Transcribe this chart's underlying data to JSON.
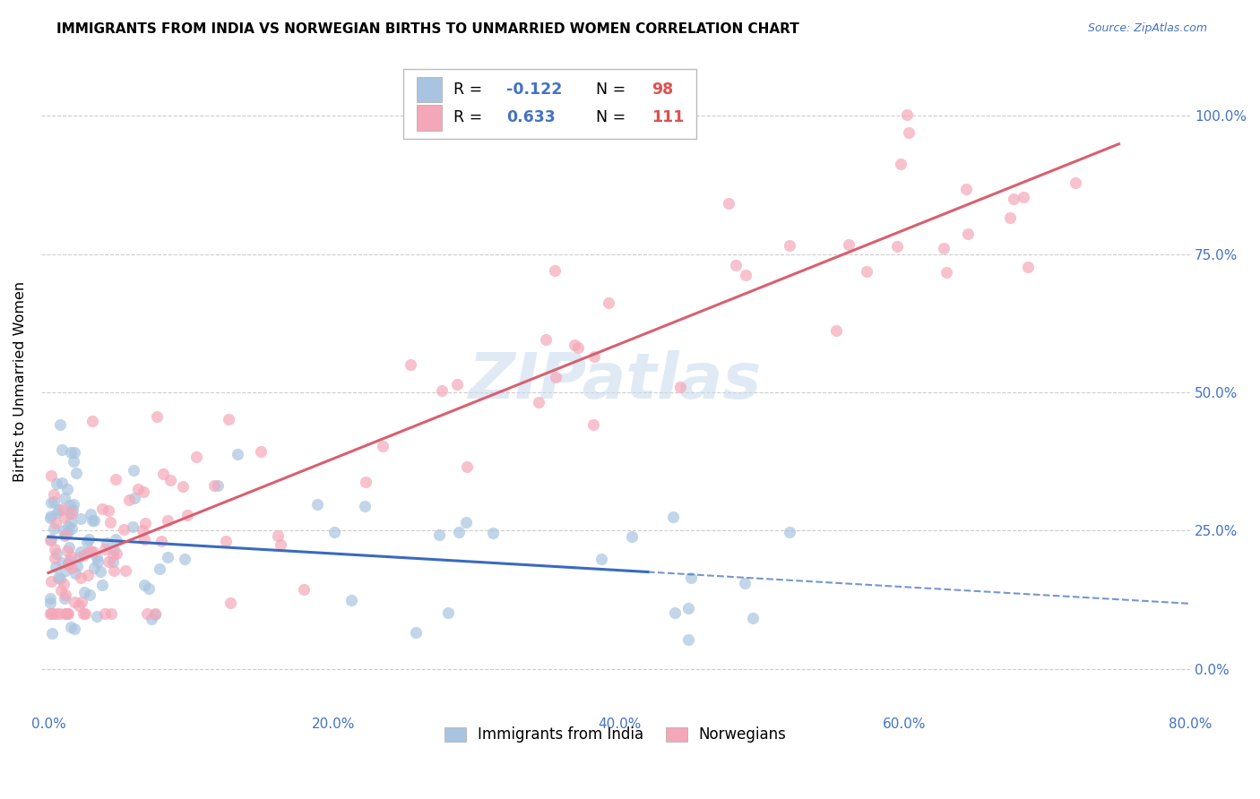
{
  "title": "IMMIGRANTS FROM INDIA VS NORWEGIAN BIRTHS TO UNMARRIED WOMEN CORRELATION CHART",
  "source": "Source: ZipAtlas.com",
  "ylabel": "Births to Unmarried Women",
  "india_color": "#a8c4e0",
  "norway_color": "#f4a7b9",
  "india_R": -0.122,
  "india_N": 98,
  "norway_R": 0.633,
  "norway_N": 111,
  "india_line_color": "#3a6abf",
  "norway_line_color": "#d96070",
  "legend_label_india": "Immigrants from India",
  "legend_label_norway": "Norwegians",
  "watermark": "ZIPatlas",
  "r_n_color": "#4472c4",
  "n_value_color": "#e05050",
  "tick_color": "#4472c4",
  "source_color": "#4472c4"
}
